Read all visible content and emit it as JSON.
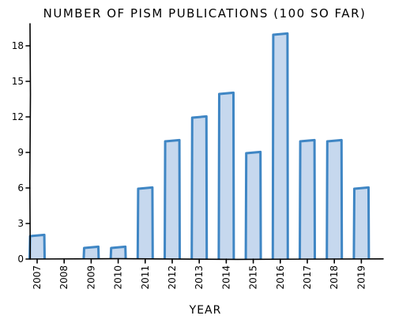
{
  "chart_data": {
    "type": "bar",
    "title": "NUMBER OF PISM PUBLICATIONS (100 SO FAR)",
    "xlabel": "YEAR",
    "ylabel": "",
    "categories": [
      "2007",
      "2008",
      "2009",
      "2010",
      "2011",
      "2012",
      "2013",
      "2014",
      "2015",
      "2016",
      "2017",
      "2018",
      "2019"
    ],
    "values": [
      2,
      0,
      1,
      1,
      6,
      10,
      12,
      14,
      9,
      19,
      10,
      10,
      6
    ],
    "ylim": [
      0,
      20
    ],
    "yticks": [
      "0",
      "3",
      "6",
      "9",
      "12",
      "15",
      "18"
    ],
    "grid": false,
    "colors": {
      "bar_fill": "#c6d8ee",
      "bar_edge": "#3f86c4",
      "axis": "#000000"
    }
  }
}
